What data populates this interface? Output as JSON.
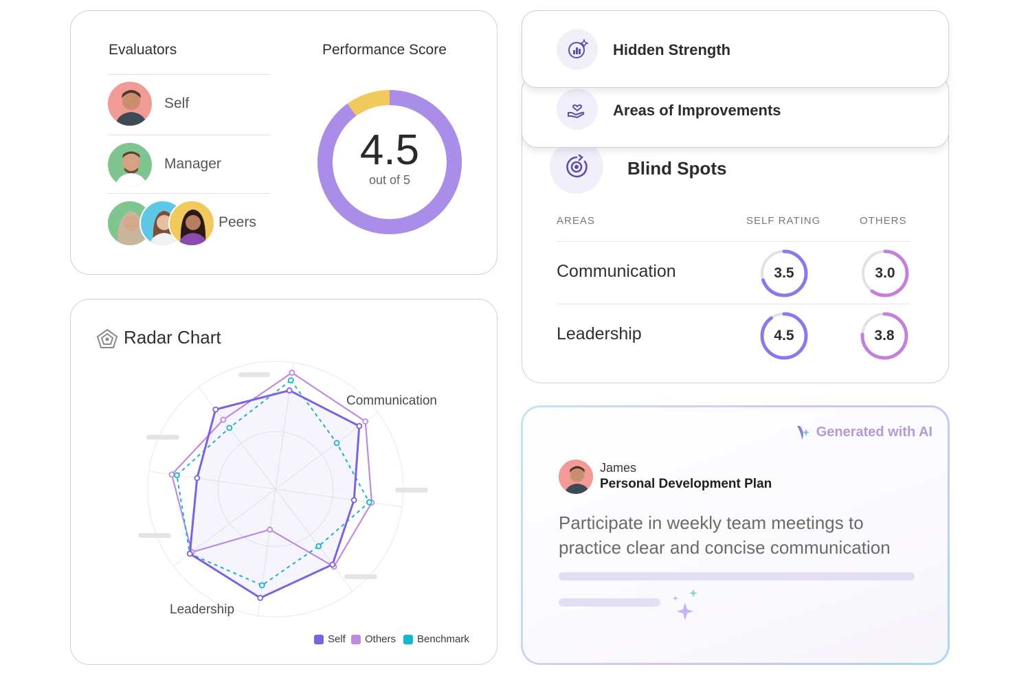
{
  "evaluators": {
    "title": "Evaluators",
    "items": [
      {
        "label": "Self"
      },
      {
        "label": "Manager"
      },
      {
        "label": "Peers"
      }
    ]
  },
  "performance": {
    "title": "Performance Score",
    "score": "4.5",
    "out_of": "out of 5",
    "score_value": 4.5,
    "max": 5,
    "colors": {
      "filled": "#a98de8",
      "rest": "#f2c95c"
    }
  },
  "radar": {
    "title": "Radar Chart",
    "labels": {
      "communication": "Communication",
      "leadership": "Leadership"
    },
    "legend": [
      {
        "name": "Self",
        "color": "#7b62e0"
      },
      {
        "name": "Others",
        "color": "#c08ae0"
      },
      {
        "name": "Benchmark",
        "color": "#14b5cf"
      }
    ]
  },
  "chart_data": {
    "type": "radar",
    "title": "Radar Chart",
    "axes": [
      "",
      "Communication",
      "",
      "",
      "",
      "Leadership",
      "",
      ""
    ],
    "max": 5,
    "series": [
      {
        "name": "Self",
        "values": [
          3.9,
          4.1,
          3.1,
          3.7,
          4.3,
          4.2,
          3.1,
          3.9
        ]
      },
      {
        "name": "Others",
        "values": [
          4.6,
          4.4,
          3.8,
          3.8,
          1.6,
          4.1,
          4.1,
          3.4
        ]
      },
      {
        "name": "Benchmark",
        "values": [
          4.3,
          3.0,
          3.7,
          2.8,
          3.8,
          4.2,
          3.9,
          3.0
        ]
      }
    ]
  },
  "hidden_strength": {
    "title": "Hidden Strength",
    "icon": "chart-sparkle-icon"
  },
  "improvements": {
    "title": "Areas of Improvements",
    "icon": "hand-heart-icon"
  },
  "blind_spots": {
    "title": "Blind Spots",
    "icon": "eye-refresh-icon",
    "headers": {
      "areas": "AREAS",
      "self": "SELF RATING",
      "others": "OTHERS"
    },
    "rows": [
      {
        "area": "Communication",
        "self": "3.5",
        "self_value": 3.5,
        "others": "3.0",
        "others_value": 3.0
      },
      {
        "area": "Leadership",
        "self": "4.5",
        "self_value": 4.5,
        "others": "3.8",
        "others_value": 3.8
      }
    ],
    "max": 5,
    "colors": {
      "self": "#8c78ec",
      "others": "#c47fd8",
      "track": "#e2e2e6"
    }
  },
  "ai_card": {
    "tag": "Generated with AI",
    "name": "James",
    "plan": "Personal Development Plan",
    "text": "Participate in weekly team meetings to practice clear and concise communication"
  }
}
